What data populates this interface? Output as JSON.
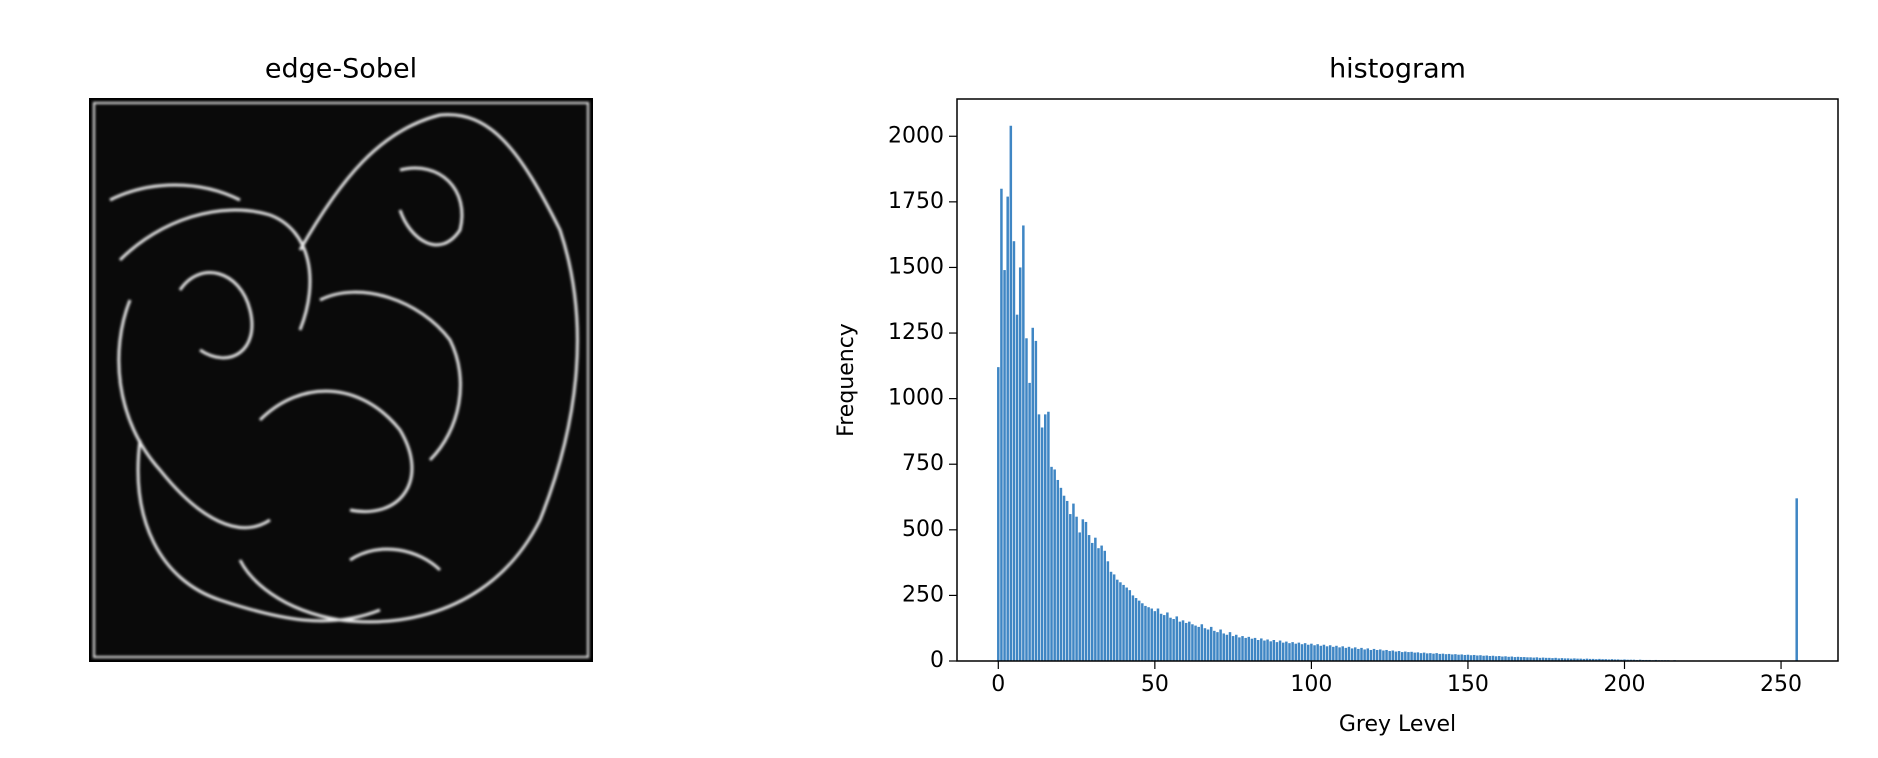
{
  "chart_data": [
    {
      "type": "image",
      "title": "edge-Sobel"
    },
    {
      "type": "bar",
      "title": "histogram",
      "x_label": "Grey Level",
      "y_label": "Frequency",
      "color": "#3f86c4",
      "x": [
        0,
        1,
        2,
        3,
        4,
        5,
        6,
        7,
        8,
        9,
        10,
        11,
        12,
        13,
        14,
        15,
        16,
        17,
        18,
        19,
        20,
        21,
        22,
        23,
        24,
        25,
        26,
        27,
        28,
        29,
        30,
        31,
        32,
        33,
        34,
        35,
        36,
        37,
        38,
        39,
        40,
        41,
        42,
        43,
        44,
        45,
        46,
        47,
        48,
        49,
        50,
        51,
        52,
        53,
        54,
        55,
        56,
        57,
        58,
        59,
        60,
        61,
        62,
        63,
        64,
        65,
        66,
        67,
        68,
        69,
        70,
        71,
        72,
        73,
        74,
        75,
        76,
        77,
        78,
        79,
        80,
        81,
        82,
        83,
        84,
        85,
        86,
        87,
        88,
        89,
        90,
        91,
        92,
        93,
        94,
        95,
        96,
        97,
        98,
        99,
        100,
        101,
        102,
        103,
        104,
        105,
        106,
        107,
        108,
        109,
        110,
        111,
        112,
        113,
        114,
        115,
        116,
        117,
        118,
        119,
        120,
        121,
        122,
        123,
        124,
        125,
        126,
        127,
        128,
        129,
        130,
        131,
        132,
        133,
        134,
        135,
        136,
        137,
        138,
        139,
        140,
        141,
        142,
        143,
        144,
        145,
        146,
        147,
        148,
        149,
        150,
        151,
        152,
        153,
        154,
        155,
        156,
        157,
        158,
        159,
        160,
        161,
        162,
        163,
        164,
        165,
        166,
        167,
        168,
        169,
        170,
        171,
        172,
        173,
        174,
        175,
        176,
        177,
        178,
        179,
        180,
        181,
        182,
        183,
        184,
        185,
        186,
        187,
        188,
        189,
        190,
        191,
        192,
        193,
        194,
        195,
        196,
        197,
        198,
        199,
        200,
        201,
        202,
        203,
        204,
        205,
        206,
        207,
        208,
        209,
        210,
        211,
        212,
        213,
        214,
        215,
        216,
        217,
        218,
        219,
        220,
        221,
        222,
        223,
        224,
        225,
        226,
        227,
        228,
        229,
        230,
        231,
        232,
        233,
        234,
        235,
        236,
        237,
        238,
        239,
        240,
        241,
        242,
        243,
        244,
        245,
        246,
        247,
        248,
        249,
        250,
        251,
        252,
        253,
        254,
        255
      ],
      "values": [
        1120,
        1800,
        1490,
        1770,
        2040,
        1600,
        1320,
        1500,
        1660,
        1230,
        1060,
        1270,
        1220,
        940,
        890,
        940,
        950,
        740,
        730,
        690,
        660,
        630,
        610,
        560,
        600,
        550,
        490,
        540,
        530,
        480,
        450,
        470,
        430,
        440,
        420,
        380,
        340,
        330,
        310,
        300,
        290,
        280,
        270,
        250,
        240,
        230,
        220,
        210,
        205,
        200,
        190,
        200,
        180,
        175,
        185,
        165,
        160,
        170,
        150,
        155,
        145,
        150,
        140,
        135,
        130,
        140,
        125,
        120,
        130,
        115,
        110,
        120,
        105,
        100,
        110,
        95,
        100,
        90,
        95,
        88,
        92,
        85,
        88,
        80,
        86,
        78,
        82,
        75,
        80,
        72,
        78,
        70,
        74,
        68,
        72,
        66,
        70,
        64,
        68,
        62,
        66,
        60,
        64,
        58,
        62,
        56,
        60,
        54,
        58,
        52,
        56,
        50,
        54,
        48,
        52,
        46,
        50,
        44,
        48,
        42,
        46,
        42,
        44,
        40,
        42,
        38,
        40,
        36,
        38,
        34,
        36,
        34,
        35,
        32,
        33,
        30,
        32,
        29,
        30,
        28,
        30,
        27,
        28,
        26,
        27,
        25,
        26,
        24,
        25,
        23,
        24,
        22,
        23,
        21,
        22,
        20,
        21,
        19,
        20,
        18,
        19,
        17,
        18,
        16,
        17,
        15,
        16,
        15,
        15,
        14,
        14,
        13,
        14,
        12,
        13,
        12,
        12,
        11,
        12,
        10,
        11,
        10,
        10,
        9,
        10,
        9,
        9,
        8,
        9,
        8,
        8,
        7,
        8,
        7,
        7,
        6,
        7,
        6,
        6,
        5,
        6,
        5,
        5,
        5,
        4,
        5,
        4,
        4,
        4,
        3,
        4,
        3,
        3,
        3,
        3,
        2,
        3,
        2,
        2,
        2,
        2,
        2,
        2,
        1,
        2,
        1,
        1,
        1,
        1,
        1,
        1,
        1,
        0,
        1,
        0,
        1,
        0,
        0,
        1,
        0,
        0,
        0,
        1,
        0,
        0,
        0,
        0,
        0,
        0,
        0,
        0,
        0,
        0,
        0,
        0,
        620
      ],
      "xlim": [
        -13.19,
        268.19
      ],
      "xticks": [
        0,
        50,
        100,
        150,
        200,
        250
      ],
      "ylim": [
        0,
        2142
      ],
      "yticks": [
        0,
        250,
        500,
        750,
        1000,
        1250,
        1500,
        1750,
        2000
      ]
    }
  ]
}
